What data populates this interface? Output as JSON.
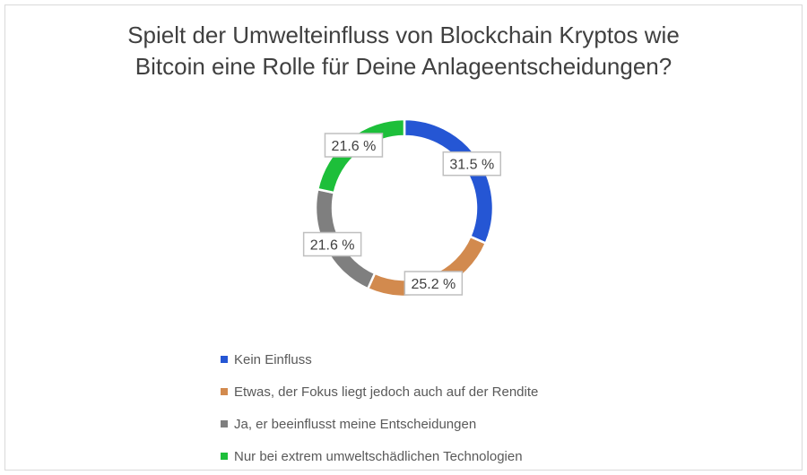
{
  "chart_data": {
    "type": "donut",
    "title": "Spielt der Umwelteinfluss von Blockchain Kryptos wie Bitcoin eine Rolle für Deine Anlageentscheidungen?",
    "title_lines": [
      "Spielt der Umwelteinfluss von Blockchain Kryptos wie",
      "Bitcoin eine Rolle für Deine Anlageentscheidungen?"
    ],
    "categories": [
      "Kein Einfluss",
      "Etwas, der Fokus liegt jedoch auch auf der Rendite",
      "Ja, er beeinflusst meine Entscheidungen",
      "Nur bei extrem umweltschädlichen Technologien"
    ],
    "values": [
      31.5,
      25.2,
      21.6,
      21.6
    ],
    "data_labels": [
      "31.5 %",
      "25.2 %",
      "21.6 %",
      "21.6 %"
    ],
    "colors": [
      "#2556d4",
      "#d28a4e",
      "#7f7f7f",
      "#1dbf3a"
    ],
    "legend_position": "bottom"
  }
}
